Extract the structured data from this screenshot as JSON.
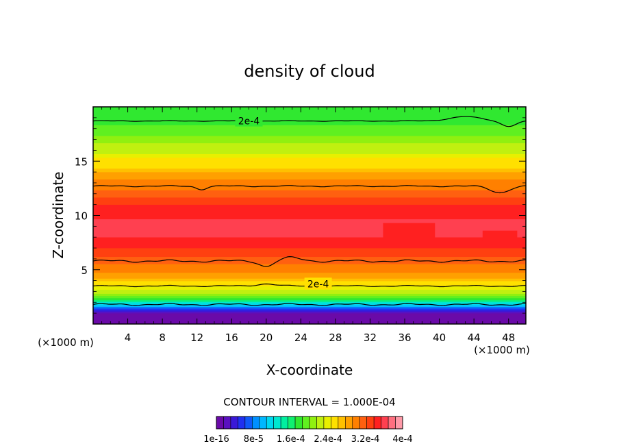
{
  "chart_data": {
    "type": "heatmap",
    "title": "density of cloud",
    "xlabel": "X-coordinate",
    "ylabel": "Z-coordinate",
    "x_unit_left": "(×1000 m)",
    "x_unit_right": "(×1000 m)",
    "xlim": [
      0,
      50
    ],
    "ylim": [
      0,
      20
    ],
    "x_ticks": [
      4,
      8,
      12,
      16,
      20,
      24,
      28,
      32,
      36,
      40,
      44,
      48
    ],
    "y_ticks": [
      5,
      10,
      15
    ],
    "contour_interval_text": "CONTOUR INTERVAL = 1.000E-04",
    "contour_labels": [
      {
        "text": "2e-4",
        "x": 18,
        "y": 18.7
      },
      {
        "text": "2e-4",
        "x": 26,
        "y": 3.7
      }
    ],
    "colorbar_labels": [
      "1e-16",
      "8e-5",
      "1.6e-4",
      "2.4e-4",
      "3.2e-4",
      "4e-4"
    ],
    "colorbar_colors": [
      "#6a0aa8",
      "#5a10c0",
      "#3a18d8",
      "#2030f0",
      "#1058f8",
      "#0090ff",
      "#00b8ff",
      "#00d8f0",
      "#00e8d0",
      "#00f0a0",
      "#10f070",
      "#30e830",
      "#60f020",
      "#90f010",
      "#c0f010",
      "#e8f000",
      "#ffe000",
      "#ffc000",
      "#ffa000",
      "#ff8000",
      "#ff6010",
      "#ff4010",
      "#ff2020",
      "#ff4050",
      "#ff7080",
      "#ff9aa8"
    ],
    "profile": [
      {
        "z": 0.0,
        "v": 0
      },
      {
        "z": 1.0,
        "v": 0.02
      },
      {
        "z": 1.4,
        "v": 0.14
      },
      {
        "z": 1.9,
        "v": 0.3
      },
      {
        "z": 2.4,
        "v": 0.46
      },
      {
        "z": 3.0,
        "v": 0.56
      },
      {
        "z": 3.5,
        "v": 0.62
      },
      {
        "z": 4.2,
        "v": 0.7
      },
      {
        "z": 5.0,
        "v": 0.75
      },
      {
        "z": 5.8,
        "v": 0.8
      },
      {
        "z": 7.0,
        "v": 0.86
      },
      {
        "z": 8.0,
        "v": 0.9
      },
      {
        "z": 9.0,
        "v": 0.91
      },
      {
        "z": 10.0,
        "v": 0.89
      },
      {
        "z": 11.0,
        "v": 0.86
      },
      {
        "z": 12.0,
        "v": 0.8
      },
      {
        "z": 13.0,
        "v": 0.75
      },
      {
        "z": 14.0,
        "v": 0.69
      },
      {
        "z": 15.0,
        "v": 0.63
      },
      {
        "z": 16.0,
        "v": 0.57
      },
      {
        "z": 17.0,
        "v": 0.51
      },
      {
        "z": 18.0,
        "v": 0.47
      },
      {
        "z": 19.0,
        "v": 0.44
      },
      {
        "z": 20.0,
        "v": 0.42
      }
    ]
  }
}
